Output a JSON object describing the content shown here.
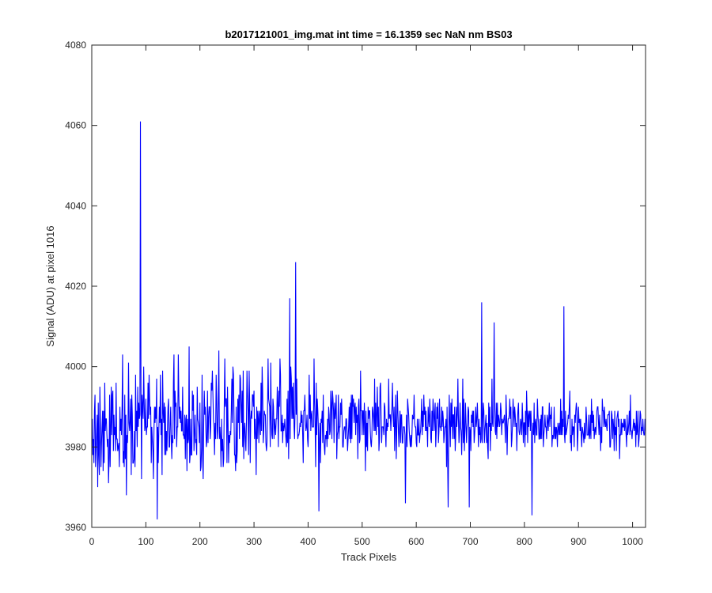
{
  "chart_data": {
    "type": "line",
    "title": "b2017121001_img.mat int time = 16.1359 sec  NaN nm BS03",
    "xlabel": "Track Pixels",
    "ylabel": "Signal (ADU) at pixel 1016",
    "xlim": [
      0,
      1024
    ],
    "ylim": [
      3960,
      4080
    ],
    "xticks": [
      "0",
      "100",
      "200",
      "300",
      "400",
      "500",
      "600",
      "700",
      "800",
      "900",
      "1000"
    ],
    "yticks": [
      "3960",
      "3980",
      "4000",
      "4020",
      "4040",
      "4060",
      "4080"
    ],
    "grid": false,
    "line_color": "#0000ff",
    "axes_color": "#262626",
    "series": [
      {
        "x_start": 1,
        "x_step": 1,
        "values": [
          3987,
          3978,
          3982,
          3976,
          3989,
          3993,
          3975,
          3979,
          3984,
          3988,
          3970,
          3991,
          3978,
          3973,
          3995,
          3986,
          3975,
          3981,
          3985,
          3989,
          3974,
          3989,
          3976,
          3996,
          3984,
          3987,
          3987,
          3983,
          3980,
          3982,
          3971,
          3977,
          3993,
          3975,
          3985,
          3995,
          3983,
          3993,
          3994,
          3979,
          3988,
          3983,
          3985,
          3979,
          3996,
          3982,
          3982,
          3979,
          3980,
          3981,
          3975,
          3990,
          3984,
          3987,
          3983,
          3990,
          4003,
          3976,
          3979,
          3975,
          3993,
          3977,
          3988,
          3968,
          3983,
          3981,
          3985,
          4001,
          3986,
          3984,
          3987,
          3992,
          3973,
          3993,
          3988,
          3976,
          3976,
          3977,
          3984,
          3975,
          3998,
          3984,
          3989,
          3980,
          3995,
          3985,
          3991,
          3987,
          3988,
          4061,
          3995,
          3972,
          3993,
          3990,
          3987,
          4000,
          3991,
          3984,
          3985,
          3992,
          3983,
          3985,
          3985,
          3996,
          3987,
          3998,
          3992,
          3988,
          3990,
          3976,
          3985,
          3982,
          3979,
          3972,
          3984,
          3990,
          3986,
          3990,
          3987,
          3997,
          3962,
          3985,
          3976,
          3984,
          3990,
          3986,
          3998,
          3983,
          3987,
          3973,
          3999,
          3989,
          3986,
          3991,
          3978,
          3990,
          3978,
          3984,
          3979,
          3985,
          3990,
          3992,
          3980,
          3980,
          3986,
          3990,
          3982,
          3977,
          3983,
          3981,
          3996,
          4003,
          3982,
          3994,
          3990,
          3991,
          3980,
          3985,
          3985,
          4003,
          3993,
          3987,
          3990,
          3986,
          3989,
          3984,
          3984,
          3995,
          3983,
          3983,
          3982,
          3988,
          3977,
          3987,
          3988,
          3974,
          3987,
          3981,
          3982,
          4005,
          3976,
          3978,
          3987,
          3978,
          3978,
          3994,
          3989,
          3993,
          3979,
          3983,
          3988,
          3981,
          3982,
          3978,
          3995,
          3987,
          3986,
          3985,
          3981,
          3991,
          3974,
          3975,
          3980,
          3998,
          3977,
          3972,
          3986,
          3994,
          3988,
          3990,
          3984,
          3980,
          3982,
          3994,
          3981,
          3987,
          3990,
          3990,
          3982,
          3985,
          3996,
          3994,
          3999,
          3993,
          3987,
          3985,
          3978,
          3986,
          3982,
          3998,
          3992,
          3982,
          3984,
          3991,
          4004,
          3982,
          3985,
          3982,
          3975,
          3987,
          3979,
          3982,
          3975,
          3977,
          3991,
          4002,
          3990,
          3992,
          3992,
          3976,
          3995,
          3986,
          3976,
          3983,
          3981,
          3984,
          3983,
          3989,
          3997,
          3986,
          4000,
          3998,
          3988,
          3978,
          3978,
          3974,
          3990,
          3976,
          3979,
          3992,
          3986,
          3993,
          3982,
          3998,
          3997,
          3990,
          3986,
          3994,
          3980,
          3999,
          3977,
          3984,
          3986,
          3982,
          3979,
          3986,
          3999,
          3993,
          3989,
          3978,
          3999,
          3991,
          3976,
          3987,
          3989,
          3987,
          3993,
          3993,
          3990,
          3994,
          3982,
          3987,
          3983,
          3973,
          3990,
          3982,
          3989,
          3987,
          3981,
          3989,
          3988,
          3983,
          3996,
          3984,
          4000,
          3994,
          3981,
          3984,
          3989,
          3988,
          3988,
          3981,
          3979,
          3981,
          3989,
          4002,
          3992,
          3991,
          3990,
          3980,
          4001,
          3987,
          3983,
          3982,
          3992,
          3990,
          3982,
          3987,
          3985,
          3983,
          3987,
          3987,
          3995,
          3991,
          3980,
          3994,
          3990,
          4002,
          3998,
          3984,
          3984,
          3988,
          3981,
          3986,
          3984,
          3985,
          3987,
          3984,
          3982,
          3980,
          3992,
          3981,
          3994,
          3977,
          3987,
          4017,
          3982,
          4000,
          3997,
          3987,
          3995,
          3987,
          3996,
          3985,
          3982,
          3990,
          4026,
          3988,
          3997,
          3986,
          3982,
          3983,
          3983,
          3984,
          3986,
          3985,
          3989,
          3986,
          3988,
          3983,
          3976,
          3989,
          3989,
          3993,
          3987,
          3984,
          3985,
          3988,
          3982,
          3980,
          3986,
          3998,
          3987,
          3993,
          3984,
          3988,
          3989,
          3985,
          3985,
          3985,
          4002,
          3991,
          3985,
          3975,
          3996,
          3983,
          3992,
          3989,
          3985,
          3964,
          3982,
          3986,
          3976,
          3987,
          3986,
          3989,
          3981,
          3993,
          3983,
          3980,
          3978,
          3983,
          3982,
          3984,
          3980,
          3987,
          3982,
          3990,
          3988,
          3983,
          3984,
          3994,
          3991,
          3982,
          3994,
          3992,
          3989,
          3981,
          3991,
          3987,
          3989,
          3993,
          3977,
          3983,
          3984,
          3993,
          3982,
          3985,
          3985,
          3991,
          3988,
          3992,
          3986,
          3980,
          3980,
          3984,
          3985,
          3985,
          3982,
          3987,
          3987,
          3984,
          3979,
          3982,
          3985,
          3990,
          3982,
          3991,
          3981,
          3993,
          3982,
          3993,
          3990,
          3992,
          3986,
          3990,
          3991,
          3983,
          3990,
          3986,
          3988,
          3977,
          3990,
          3992,
          3981,
          3982,
          3999,
          3989,
          3989,
          3983,
          3989,
          3989,
          3983,
          3991,
          3986,
          3974,
          3989,
          3980,
          3986,
          3979,
          3990,
          3987,
          3989,
          3989,
          3984,
          3981,
          3980,
          3983,
          3990,
          3989,
          3987,
          3984,
          3997,
          3984,
          3991,
          3983,
          3988,
          3995,
          3985,
          3990,
          3979,
          3982,
          3995,
          3996,
          3988,
          3981,
          3985,
          3985,
          3985,
          3983,
          3991,
          3990,
          3984,
          3980,
          3987,
          3984,
          3986,
          3985,
          3997,
          3987,
          3988,
          3988,
          3984,
          3988,
          3990,
          3996,
          3988,
          3985,
          3990,
          3979,
          3986,
          3993,
          3977,
          3984,
          3994,
          3989,
          3984,
          3980,
          3985,
          3989,
          3981,
          3988,
          3988,
          3981,
          3981,
          3985,
          3985,
          3985,
          3983,
          3966,
          3981,
          3988,
          3980,
          3992,
          3990,
          3988,
          3984,
          3982,
          3980,
          3983,
          3980,
          3983,
          3988,
          3987,
          3987,
          3993,
          3986,
          3985,
          3985,
          3981,
          3980,
          3987,
          3983,
          3983,
          3987,
          3981,
          3983,
          3984,
          3987,
          3992,
          3983,
          3989,
          3985,
          3993,
          3988,
          3990,
          3984,
          3989,
          3984,
          3985,
          3980,
          3990,
          3987,
          3985,
          3992,
          3988,
          3982,
          3981,
          3989,
          3984,
          3992,
          3989,
          3984,
          3988,
          3991,
          3980,
          3984,
          3990,
          3987,
          3991,
          3981,
          3984,
          3992,
          3985,
          3985,
          3984,
          3990,
          3985,
          3989,
          3987,
          3981,
          3983,
          3985,
          3985,
          3987,
          3975,
          3990,
          3977,
          3965,
          3983,
          3993,
          3986,
          3980,
          3991,
          3985,
          3992,
          3982,
          3988,
          3988,
          3982,
          3990,
          3979,
          3983,
          3990,
          3985,
          3988,
          3997,
          3987,
          3981,
          3984,
          3991,
          3985,
          3984,
          3978,
          3985,
          3997,
          3981,
          3992,
          3979,
          3984,
          3991,
          3986,
          3981,
          3985,
          3986,
          3990,
          3989,
          3965,
          3985,
          3984,
          3979,
          3988,
          3986,
          3989,
          3985,
          3989,
          3981,
          3983,
          3986,
          3990,
          3985,
          3987,
          3991,
          3986,
          3980,
          3987,
          3983,
          3985,
          3981,
          3982,
          4016,
          3981,
          3986,
          3991,
          3989,
          3981,
          3984,
          3986,
          3988,
          3981,
          3986,
          3980,
          3977,
          3991,
          3985,
          3990,
          3979,
          3986,
          3984,
          3997,
          3986,
          3985,
          3990,
          4011,
          3991,
          3984,
          3983,
          3991,
          3982,
          3991,
          3985,
          3988,
          3987,
          3985,
          3986,
          3991,
          3989,
          3983,
          3987,
          3986,
          3986,
          3987,
          3988,
          3985,
          3981,
          3993,
          3988,
          3978,
          3985,
          3987,
          3987,
          3988,
          3992,
          3987,
          3990,
          3980,
          3982,
          3986,
          3992,
          3989,
          3985,
          3990,
          3988,
          3985,
          3986,
          3979,
          3986,
          3989,
          3991,
          3984,
          3983,
          3984,
          3987,
          3986,
          3983,
          3991,
          3987,
          3981,
          3986,
          3986,
          3980,
          3989,
          3983,
          3994,
          3989,
          3981,
          3989,
          3985,
          3988,
          3989,
          3984,
          3989,
          3985,
          3963,
          3983,
          3986,
          3983,
          3991,
          3981,
          3986,
          3987,
          3983,
          3983,
          3992,
          3988,
          3986,
          3982,
          3982,
          3987,
          3982,
          3988,
          3982,
          3990,
          3990,
          3980,
          3983,
          3985,
          3988,
          3985,
          3985,
          3982,
          3988,
          3987,
          3984,
          3987,
          3991,
          3985,
          3988,
          3987,
          3990,
          3980,
          3983,
          3982,
          3983,
          3990,
          3982,
          3985,
          3982,
          3985,
          3984,
          3980,
          3986,
          3985,
          3983,
          3986,
          3983,
          3992,
          3983,
          3989,
          3983,
          3987,
          3985,
          4015,
          3983,
          3981,
          3989,
          3983,
          3984,
          3985,
          3986,
          3988,
          3987,
          3990,
          3994,
          3981,
          3983,
          3979,
          3987,
          3983,
          3985,
          3985,
          3980,
          3988,
          3986,
          3989,
          3991,
          3989,
          3979,
          3983,
          3990,
          3986,
          3987,
          3984,
          3987,
          3983,
          3980,
          3985,
          3984,
          3983,
          3981,
          3986,
          3982,
          3983,
          3990,
          3987,
          3983,
          3983,
          3983,
          3988,
          3982,
          3983,
          3988,
          3982,
          3992,
          3986,
          3989,
          3984,
          3988,
          3982,
          3984,
          3985,
          3983,
          3985,
          3989,
          3990,
          3990,
          3986,
          3983,
          3988,
          3985,
          3979,
          3985,
          3981,
          3992,
          3989,
          3989,
          3985,
          3990,
          3986,
          3985,
          3987,
          3985,
          3984,
          3988,
          3988,
          3988,
          3989,
          3980,
          3980,
          3983,
          3989,
          3988,
          3982,
          3987,
          3985,
          3979,
          3989,
          3983,
          3985,
          3979,
          3987,
          3988,
          3989,
          3985,
          3987,
          3977,
          3983,
          3983,
          3987,
          3983,
          3986,
          3985,
          3985,
          3987,
          3984,
          3987,
          3985,
          3983,
          3980,
          3988,
          3983,
          3984,
          3986,
          3989,
          3983,
          3993,
          3984,
          3984,
          3982,
          3984,
          3985,
          3987,
          3984,
          3986,
          3985,
          3980,
          3989,
          3983,
          3984,
          3989,
          3980,
          3982,
          3985,
          3989,
          3988,
          3983,
          3985,
          3984,
          3987,
          3984,
          3983,
          3983,
          3987,
          3984,
          3990,
          3983,
          3986,
          3985,
          3986,
          3981,
          3984,
          3987,
          3981,
          3988,
          3984,
          3985,
          3990,
          3985,
          3983,
          3980,
          3987,
          3983,
          3984,
          3982,
          3985,
          3990,
          3986,
          3980,
          3988,
          3982,
          3986,
          3984,
          3985,
          3982,
          3987,
          3990,
          3985,
          3983,
          3982,
          3987,
          3983,
          3981,
          3985,
          3982,
          3983,
          3987,
          3988,
          3986,
          3980,
          3983,
          3984,
          3984,
          3985,
          3985
        ]
      }
    ]
  }
}
